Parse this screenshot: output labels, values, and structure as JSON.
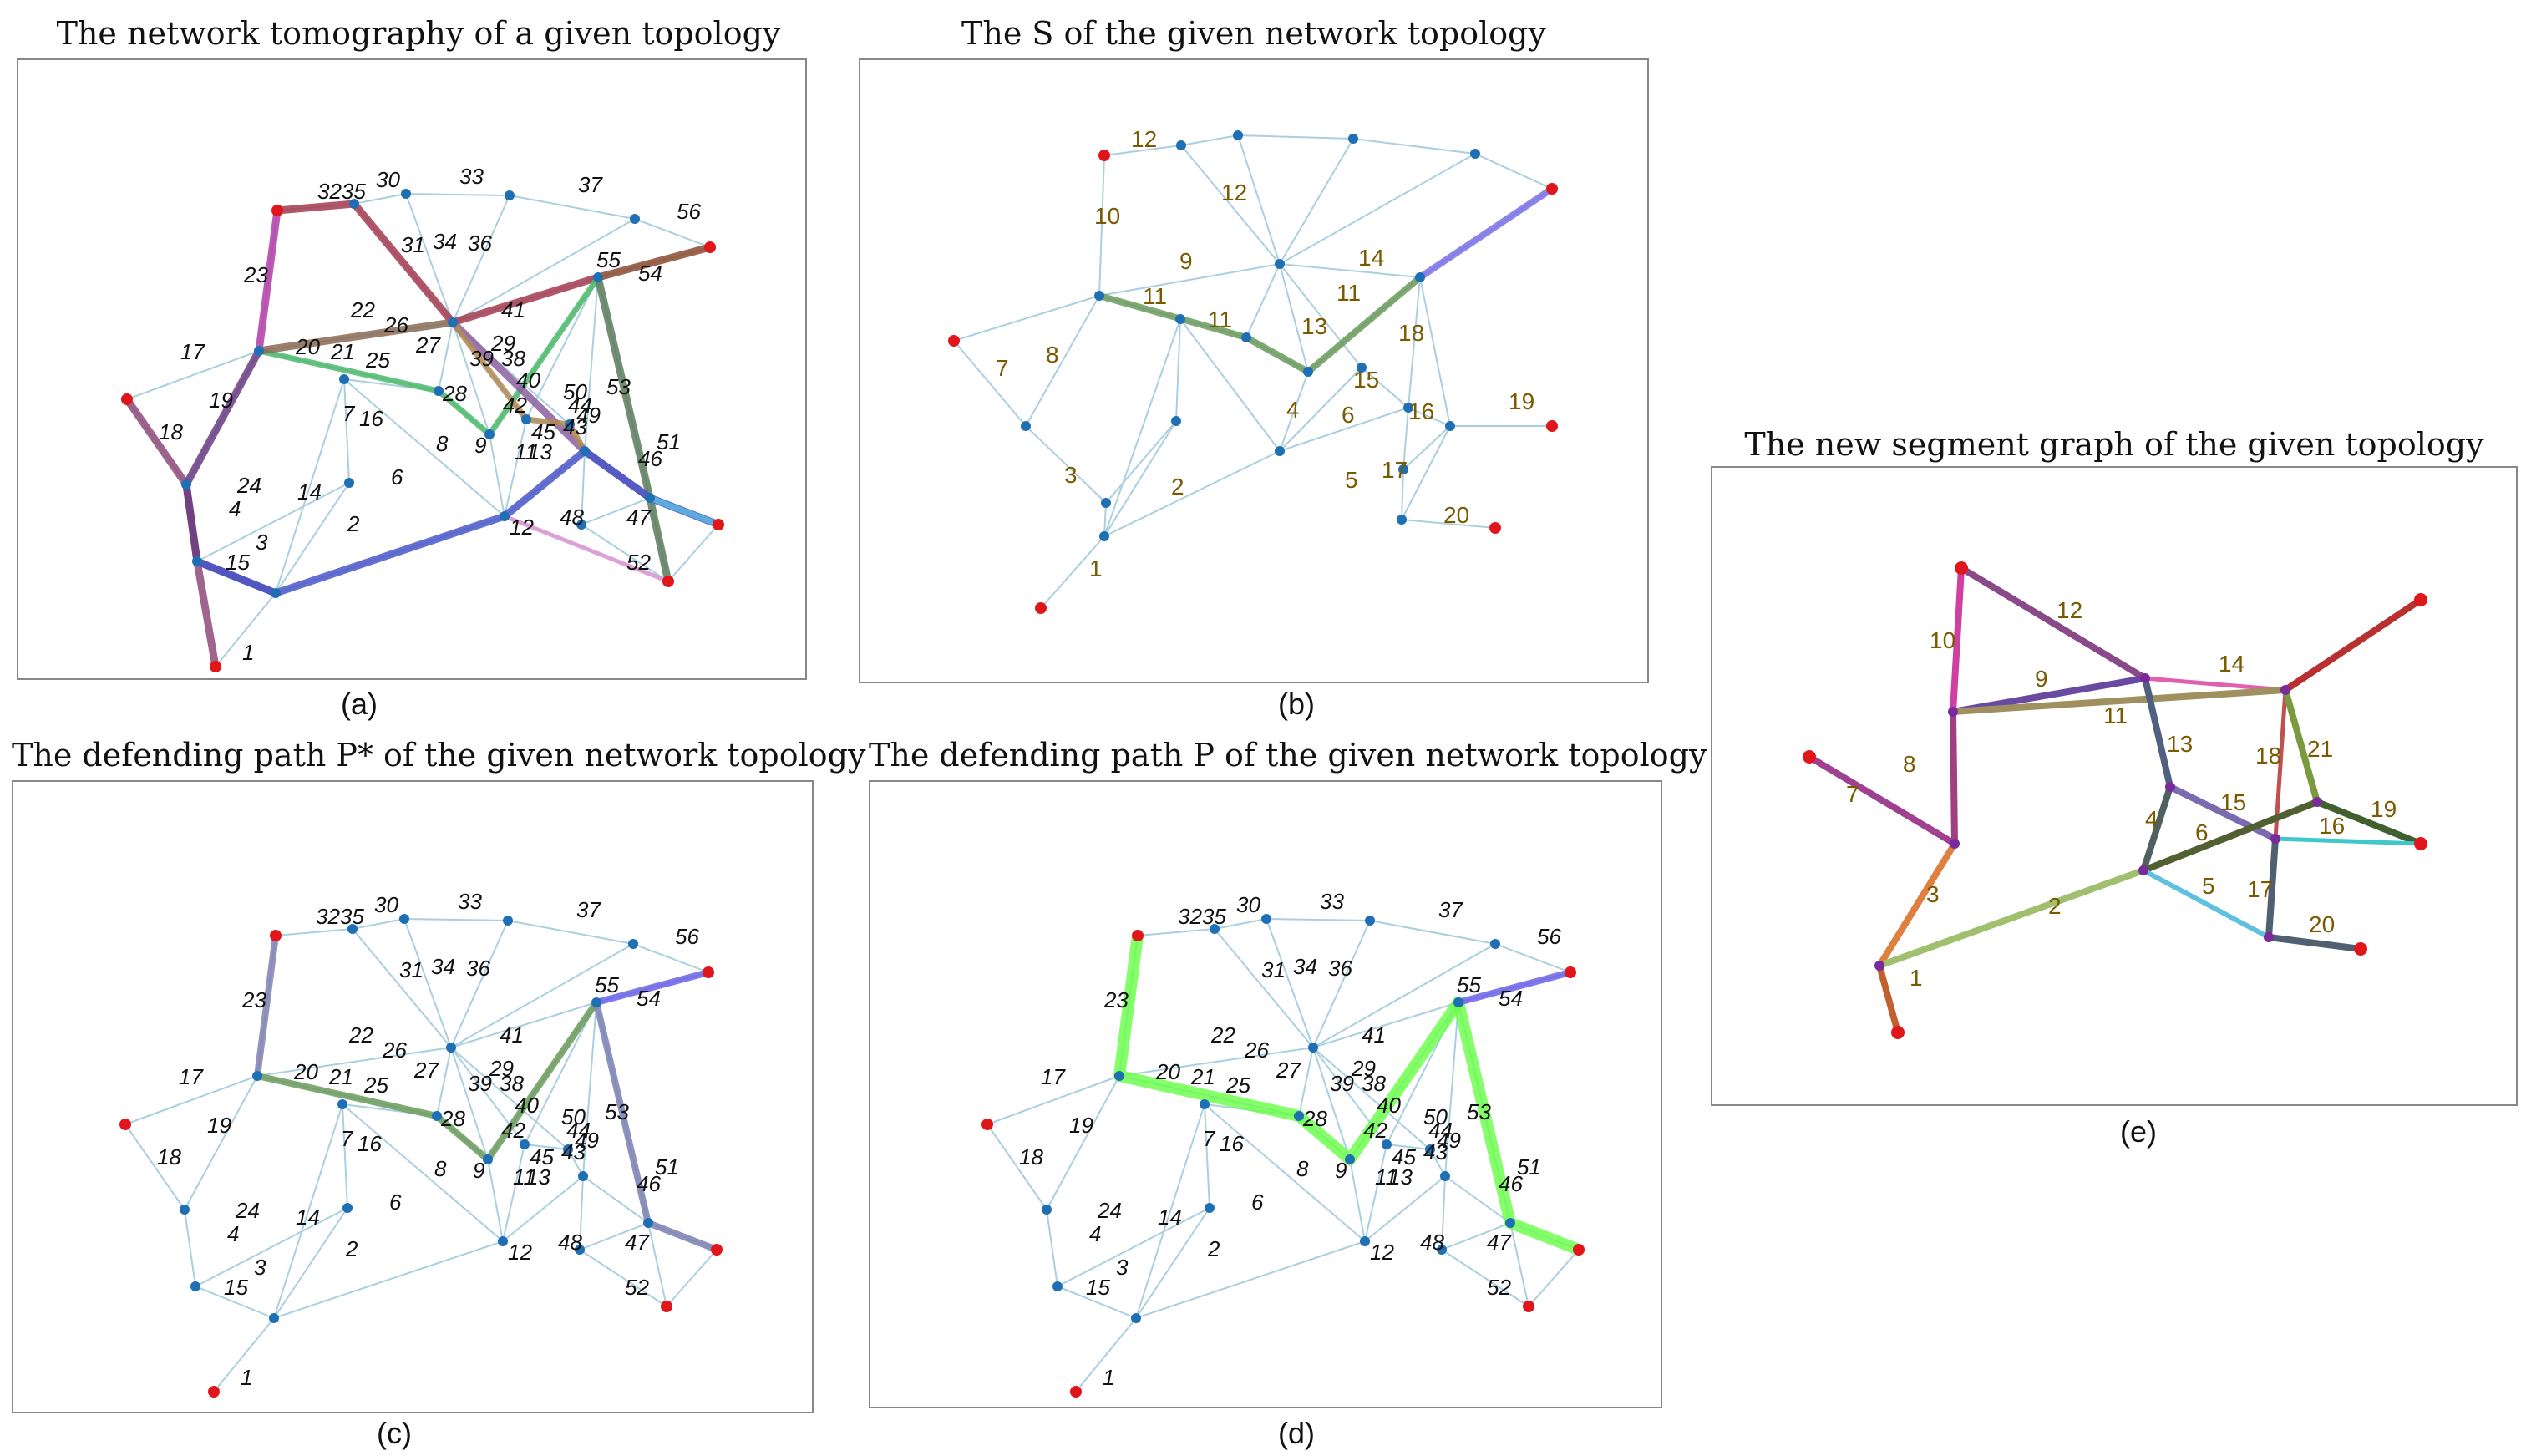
{
  "panels": [
    {
      "id": "a",
      "title": "The network tomography of a given topology",
      "caption": "(a)"
    },
    {
      "id": "b",
      "title": "The S of the given network topology",
      "caption": "(b)"
    },
    {
      "id": "c",
      "title": "The defending path P* of the given network topology",
      "caption": "(c)"
    },
    {
      "id": "d",
      "title": "The defending path P of the given network topology",
      "caption": "(d)"
    },
    {
      "id": "e",
      "title": "The new segment graph of the given topology",
      "caption": "(e)"
    }
  ],
  "colors": {
    "node_blue": "#1f6fb4",
    "node_red": "#e0161b",
    "node_purple": "#7a2a9a",
    "thin_edge": "#a9cfe0",
    "label_olive": "#7a5a00"
  },
  "edge_labels_full": [
    "3235",
    "30",
    "33",
    "37",
    "56",
    "23",
    "31",
    "34",
    "36",
    "55",
    "54",
    "22",
    "26",
    "41",
    "17",
    "20",
    "21",
    "25",
    "27",
    "39",
    "29",
    "38",
    "40",
    "50",
    "53",
    "19",
    "7",
    "16",
    "28",
    "42",
    "44",
    "18",
    "8",
    "45",
    "43",
    "49",
    "51",
    "46",
    "24",
    "14",
    "6",
    "9",
    "11",
    "13",
    "1",
    "4",
    "2",
    "12",
    "48",
    "47",
    "52",
    "3",
    "15"
  ],
  "edge_labels_segments": [
    "12",
    "10",
    "12",
    "9",
    "11",
    "11",
    "11",
    "14",
    "13",
    "18",
    "7",
    "8",
    "15",
    "19",
    "3",
    "4",
    "16",
    "6",
    "2",
    "17",
    "5",
    "20",
    "1"
  ],
  "segment_graph_labels": [
    "10",
    "12",
    "9",
    "14",
    "11",
    "13",
    "18",
    "21",
    "19",
    "7",
    "8",
    "15",
    "16",
    "4",
    "6",
    "3",
    "5",
    "17",
    "2",
    "20",
    "1"
  ]
}
